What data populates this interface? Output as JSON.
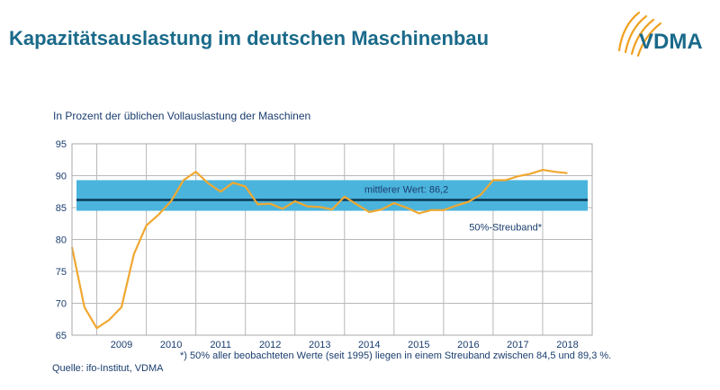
{
  "page": {
    "title": "Kapazitätsauslastung im deutschen Maschinenbau",
    "logo_text": "VDMA",
    "footnote": "*) 50% aller beobachteten Werte (seit 1995) liegen in einem Streuband zwischen 84,5 und 89,3 %.",
    "source": "Quelle: ifo-Institut, VDMA"
  },
  "colors": {
    "title": "#1a6a8a",
    "line": "#f0a830",
    "band": "#4bb4dc",
    "mean_line": "#0a3a5a",
    "text": "#1a3d6e",
    "logo_swoosh": "#f0a020"
  },
  "chart_data": {
    "type": "line",
    "title": "",
    "subtitle": "In Prozent der üblichen Vollauslastung der Maschinen",
    "xlabel": "",
    "ylabel": "",
    "ylim": [
      65,
      95
    ],
    "yticks": [
      95,
      90,
      85,
      80,
      75,
      70,
      65
    ],
    "xlim": [
      2008.5,
      2019.0
    ],
    "year_labels": [
      "2009",
      "2010",
      "2011",
      "2012",
      "2013",
      "2014",
      "2015",
      "2016",
      "2017",
      "2018"
    ],
    "grid": true,
    "band": {
      "low": 84.5,
      "high": 89.3,
      "label": "50%-Streuband*"
    },
    "mean": {
      "value": 86.2,
      "label": "mittlerer Wert: 86,2"
    },
    "series": [
      {
        "x": [
          2008.5,
          2008.75,
          2009.0,
          2009.25,
          2009.5,
          2009.75,
          2010.0,
          2010.25,
          2010.5,
          2010.75,
          2011.0,
          2011.25,
          2011.5,
          2011.75,
          2012.0,
          2012.25,
          2012.5,
          2012.75,
          2013.0,
          2013.25,
          2013.5,
          2013.75,
          2014.0,
          2014.25,
          2014.5,
          2014.75,
          2015.0,
          2015.25,
          2015.5,
          2015.75,
          2016.0,
          2016.25,
          2016.5,
          2016.75,
          2017.0,
          2017.25,
          2017.5,
          2017.75,
          2018.0,
          2018.25,
          2018.5
        ],
        "values": [
          78.8,
          69.4,
          66.1,
          67.4,
          69.4,
          77.7,
          82.2,
          83.9,
          86.0,
          89.3,
          90.6,
          88.8,
          87.5,
          88.9,
          88.3,
          85.5,
          85.6,
          84.8,
          86.0,
          85.2,
          85.1,
          84.7,
          86.7,
          85.5,
          84.3,
          84.7,
          85.7,
          85.0,
          84.1,
          84.6,
          84.6,
          85.3,
          85.9,
          87.0,
          89.3,
          89.3,
          89.9,
          90.3,
          90.9,
          90.6,
          90.4
        ]
      }
    ]
  }
}
